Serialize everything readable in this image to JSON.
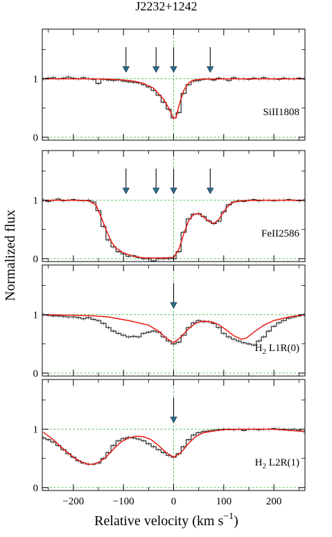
{
  "figure": {
    "title": "J2232+1242",
    "ylabel": "Normalized flux",
    "xlabel": "Relative velocity (km s",
    "xlabel_sup": "−1",
    "xlabel_close": ")"
  },
  "colors": {
    "data": "#333333",
    "model": "#e8190f",
    "guide": "#4cbb4c",
    "arrow_fill": "#2f6f8f",
    "arrow_edge": "#10324a"
  },
  "chart_data": [
    {
      "type": "line",
      "label": "SiII1808",
      "xlim": [
        -262,
        262
      ],
      "ylim": [
        -0.05,
        1.85
      ],
      "yticks": [
        0,
        1
      ],
      "xticks": [
        -200,
        -100,
        0,
        100,
        200
      ],
      "show_xtick_labels": false,
      "components_kms": [
        -95,
        -35,
        0,
        73
      ],
      "series": [
        {
          "role": "data",
          "x": [
            -260,
            -250,
            -240,
            -230,
            -220,
            -210,
            -200,
            -190,
            -180,
            -170,
            -160,
            -150,
            -140,
            -130,
            -120,
            -110,
            -100,
            -90,
            -80,
            -70,
            -60,
            -50,
            -40,
            -30,
            -20,
            -10,
            0,
            10,
            20,
            30,
            40,
            50,
            60,
            70,
            80,
            90,
            100,
            110,
            120,
            130,
            140,
            150,
            160,
            170,
            180,
            190,
            200,
            210,
            220,
            230,
            240,
            250,
            260
          ],
          "y": [
            1.0,
            1.01,
            1.02,
            1.0,
            1.01,
            1.03,
            1.01,
            1.0,
            1.02,
            1.0,
            0.99,
            0.92,
            0.99,
            0.98,
            0.97,
            0.98,
            0.96,
            0.95,
            0.94,
            0.93,
            0.9,
            0.86,
            0.8,
            0.72,
            0.6,
            0.48,
            0.33,
            0.42,
            0.75,
            0.9,
            0.96,
            0.97,
            0.99,
            1.0,
            0.98,
            1.01,
            1.0,
            0.97,
            1.02,
            1.0,
            1.0,
            0.99,
            1.01,
            1.0,
            1.02,
            1.0,
            1.0,
            0.99,
            1.01,
            1.0,
            1.0,
            1.01,
            1.0
          ]
        },
        {
          "role": "model",
          "x": [
            -260,
            -240,
            -220,
            -200,
            -180,
            -160,
            -140,
            -120,
            -100,
            -80,
            -60,
            -40,
            -20,
            -10,
            0,
            5,
            10,
            20,
            30,
            40,
            60,
            80,
            100,
            130,
            160,
            200,
            260
          ],
          "y": [
            1.0,
            1.0,
            1.0,
            1.0,
            1.0,
            1.0,
            0.995,
            0.99,
            0.98,
            0.96,
            0.92,
            0.84,
            0.65,
            0.5,
            0.32,
            0.34,
            0.52,
            0.8,
            0.93,
            0.98,
            0.997,
            0.995,
            1.0,
            1.0,
            1.0,
            1.0,
            1.0
          ]
        }
      ]
    },
    {
      "type": "line",
      "label": "FeII2586",
      "xlim": [
        -262,
        262
      ],
      "ylim": [
        -0.05,
        1.85
      ],
      "yticks": [
        0,
        1
      ],
      "xticks": [
        -200,
        -100,
        0,
        100,
        200
      ],
      "show_xtick_labels": false,
      "components_kms": [
        -95,
        -35,
        0,
        73
      ],
      "series": [
        {
          "role": "data",
          "x": [
            -260,
            -250,
            -240,
            -230,
            -220,
            -210,
            -200,
            -190,
            -180,
            -170,
            -160,
            -150,
            -140,
            -130,
            -120,
            -110,
            -100,
            -90,
            -80,
            -70,
            -60,
            -50,
            -40,
            -30,
            -20,
            -10,
            0,
            10,
            20,
            30,
            40,
            50,
            60,
            70,
            80,
            90,
            100,
            110,
            120,
            130,
            140,
            150,
            160,
            170,
            180,
            190,
            200,
            210,
            220,
            230,
            240,
            250,
            260
          ],
          "y": [
            1.0,
            0.98,
            1.0,
            1.02,
            0.99,
            1.0,
            1.01,
            1.0,
            0.99,
            1.0,
            0.97,
            0.82,
            0.55,
            0.32,
            0.2,
            0.12,
            0.08,
            0.04,
            0.05,
            0.02,
            0.0,
            0.0,
            -0.04,
            0.0,
            0.0,
            0.0,
            0.0,
            0.12,
            0.45,
            0.68,
            0.76,
            0.77,
            0.72,
            0.65,
            0.6,
            0.64,
            0.8,
            0.92,
            0.97,
            0.99,
            0.98,
            1.0,
            1.01,
            0.99,
            1.0,
            1.0,
            0.99,
            1.0,
            1.0,
            1.01,
            1.0,
            0.99,
            1.0
          ]
        },
        {
          "role": "model",
          "x": [
            -260,
            -200,
            -170,
            -155,
            -145,
            -135,
            -125,
            -115,
            -100,
            -80,
            -60,
            -40,
            -20,
            0,
            10,
            20,
            30,
            40,
            50,
            60,
            70,
            80,
            90,
            100,
            110,
            120,
            140,
            170,
            200,
            260
          ],
          "y": [
            1.0,
            1.0,
            0.99,
            0.92,
            0.72,
            0.5,
            0.3,
            0.18,
            0.1,
            0.04,
            0.01,
            0.01,
            0.01,
            0.02,
            0.15,
            0.42,
            0.65,
            0.76,
            0.77,
            0.71,
            0.64,
            0.6,
            0.67,
            0.8,
            0.92,
            0.97,
            0.995,
            1.0,
            1.0,
            1.0
          ]
        }
      ]
    },
    {
      "type": "line",
      "label": "H",
      "label_sub": "2",
      "label_rest": " L1R(0)",
      "xlim": [
        -262,
        262
      ],
      "ylim": [
        -0.05,
        1.85
      ],
      "yticks": [
        0,
        1
      ],
      "xticks": [
        -200,
        -100,
        0,
        100,
        200
      ],
      "show_xtick_labels": false,
      "components_kms": [
        0
      ],
      "series": [
        {
          "role": "data",
          "x": [
            -260,
            -250,
            -240,
            -230,
            -220,
            -210,
            -200,
            -190,
            -180,
            -170,
            -160,
            -150,
            -140,
            -130,
            -120,
            -110,
            -100,
            -90,
            -80,
            -70,
            -60,
            -50,
            -40,
            -30,
            -20,
            -10,
            0,
            10,
            20,
            30,
            40,
            50,
            60,
            70,
            80,
            90,
            100,
            110,
            120,
            130,
            140,
            150,
            160,
            170,
            180,
            190,
            200,
            210,
            220,
            230,
            240,
            250,
            260
          ],
          "y": [
            1.0,
            0.99,
            0.98,
            0.98,
            0.97,
            0.96,
            0.96,
            0.95,
            0.93,
            0.95,
            0.92,
            0.9,
            0.85,
            0.78,
            0.72,
            0.68,
            0.65,
            0.62,
            0.63,
            0.62,
            0.68,
            0.7,
            0.72,
            0.7,
            0.62,
            0.55,
            0.5,
            0.53,
            0.65,
            0.78,
            0.86,
            0.9,
            0.88,
            0.88,
            0.85,
            0.78,
            0.68,
            0.62,
            0.58,
            0.55,
            0.52,
            0.5,
            0.48,
            0.55,
            0.62,
            0.72,
            0.8,
            0.86,
            0.9,
            0.94,
            0.96,
            0.98,
            1.0
          ]
        },
        {
          "role": "model",
          "x": [
            -260,
            -200,
            -160,
            -130,
            -110,
            -90,
            -70,
            -50,
            -30,
            -15,
            0,
            15,
            30,
            45,
            60,
            75,
            90,
            105,
            120,
            135,
            145,
            160,
            180,
            200,
            230,
            260
          ],
          "y": [
            1.0,
            0.99,
            0.98,
            0.96,
            0.93,
            0.9,
            0.86,
            0.82,
            0.72,
            0.6,
            0.52,
            0.62,
            0.76,
            0.86,
            0.89,
            0.88,
            0.83,
            0.74,
            0.64,
            0.58,
            0.6,
            0.7,
            0.82,
            0.9,
            0.96,
            1.0
          ]
        }
      ]
    },
    {
      "type": "line",
      "label": "H",
      "label_sub": "2",
      "label_rest": " L2R(1)",
      "xlim": [
        -262,
        262
      ],
      "ylim": [
        -0.05,
        1.85
      ],
      "yticks": [
        0,
        1
      ],
      "xticks": [
        -200,
        -100,
        0,
        100,
        200
      ],
      "xticklabels": [
        "−200",
        "−100",
        "0",
        "100",
        "200"
      ],
      "show_xtick_labels": true,
      "components_kms": [
        0
      ],
      "series": [
        {
          "role": "data",
          "x": [
            -260,
            -250,
            -240,
            -230,
            -220,
            -210,
            -200,
            -190,
            -180,
            -170,
            -160,
            -150,
            -140,
            -130,
            -120,
            -110,
            -100,
            -90,
            -80,
            -70,
            -60,
            -50,
            -40,
            -30,
            -20,
            -10,
            0,
            10,
            20,
            30,
            40,
            50,
            60,
            70,
            80,
            90,
            100,
            110,
            120,
            130,
            140,
            150,
            160,
            170,
            180,
            190,
            200,
            210,
            220,
            230,
            240,
            250,
            260
          ],
          "y": [
            0.85,
            0.82,
            0.78,
            0.72,
            0.65,
            0.58,
            0.52,
            0.46,
            0.42,
            0.4,
            0.4,
            0.42,
            0.5,
            0.6,
            0.72,
            0.8,
            0.84,
            0.86,
            0.85,
            0.83,
            0.8,
            0.75,
            0.7,
            0.65,
            0.6,
            0.55,
            0.52,
            0.58,
            0.7,
            0.82,
            0.9,
            0.94,
            0.96,
            0.97,
            0.98,
            0.99,
            1.0,
            1.0,
            0.99,
            1.0,
            0.98,
            1.0,
            1.0,
            0.99,
            1.0,
            1.0,
            1.01,
            1.0,
            1.0,
            0.99,
            1.0,
            0.98,
            0.96
          ]
        },
        {
          "role": "model",
          "x": [
            -260,
            -240,
            -220,
            -200,
            -185,
            -170,
            -160,
            -150,
            -135,
            -120,
            -105,
            -90,
            -75,
            -60,
            -45,
            -30,
            -15,
            0,
            15,
            30,
            45,
            60,
            80,
            100,
            130,
            160,
            200,
            260
          ],
          "y": [
            0.95,
            0.82,
            0.66,
            0.52,
            0.44,
            0.4,
            0.4,
            0.43,
            0.52,
            0.66,
            0.78,
            0.85,
            0.88,
            0.87,
            0.82,
            0.72,
            0.6,
            0.52,
            0.6,
            0.76,
            0.88,
            0.94,
            0.97,
            0.99,
            1.0,
            1.0,
            1.0,
            0.96
          ]
        }
      ]
    }
  ]
}
